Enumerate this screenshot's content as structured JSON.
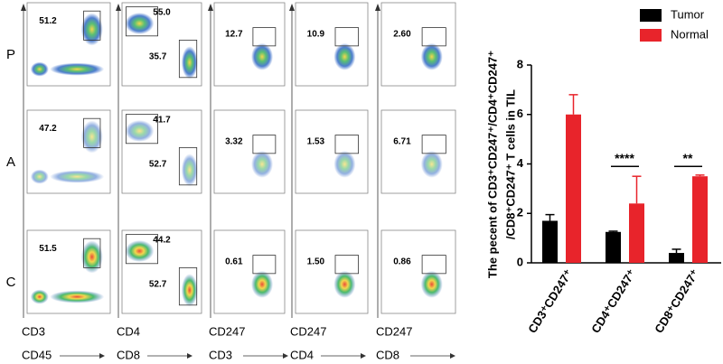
{
  "flow": {
    "rows": [
      {
        "label": "P",
        "gates": [
          [
            "51.2"
          ],
          [
            "55.0",
            "35.7"
          ],
          [
            "12.7"
          ],
          [
            "10.9"
          ],
          [
            "2.60"
          ]
        ]
      },
      {
        "label": "A",
        "gates": [
          [
            "47.2"
          ],
          [
            "41.7",
            "52.7"
          ],
          [
            "3.32"
          ],
          [
            "1.53"
          ],
          [
            "6.71"
          ]
        ]
      },
      {
        "label": "C",
        "gates": [
          [
            "51.5"
          ],
          [
            "44.2",
            "52.7"
          ],
          [
            "0.61"
          ],
          [
            "1.50"
          ],
          [
            "0.86"
          ]
        ]
      }
    ],
    "y_channels": [
      "CD3",
      "CD4",
      "CD247",
      "CD247",
      "CD247"
    ],
    "x_channels": [
      "CD45",
      "CD8",
      "CD3",
      "CD4",
      "CD8"
    ]
  },
  "chart_data": {
    "type": "bar",
    "ylabel": [
      "The pecent of CD3⁺CD247⁺/CD4⁺CD247⁺",
      "/CD8⁺CD247⁺ T cells in TIL"
    ],
    "categories": [
      "CD3⁺CD247⁺",
      "CD4⁺CD247⁺",
      "CD8⁺CD247⁺"
    ],
    "series": [
      {
        "name": "Tumor",
        "color": "#000000",
        "values": [
          1.7,
          1.25,
          0.4
        ],
        "errors": [
          0.25,
          0.03,
          0.15
        ]
      },
      {
        "name": "Normal",
        "color": "#e8242b",
        "values": [
          6.0,
          2.4,
          3.5
        ],
        "errors": [
          0.8,
          1.1,
          0.05
        ]
      }
    ],
    "annotations": [
      "****",
      "**"
    ],
    "ylim": [
      0,
      8
    ],
    "yticks": [
      0,
      2,
      4,
      6,
      8
    ],
    "legend": "top-right"
  }
}
